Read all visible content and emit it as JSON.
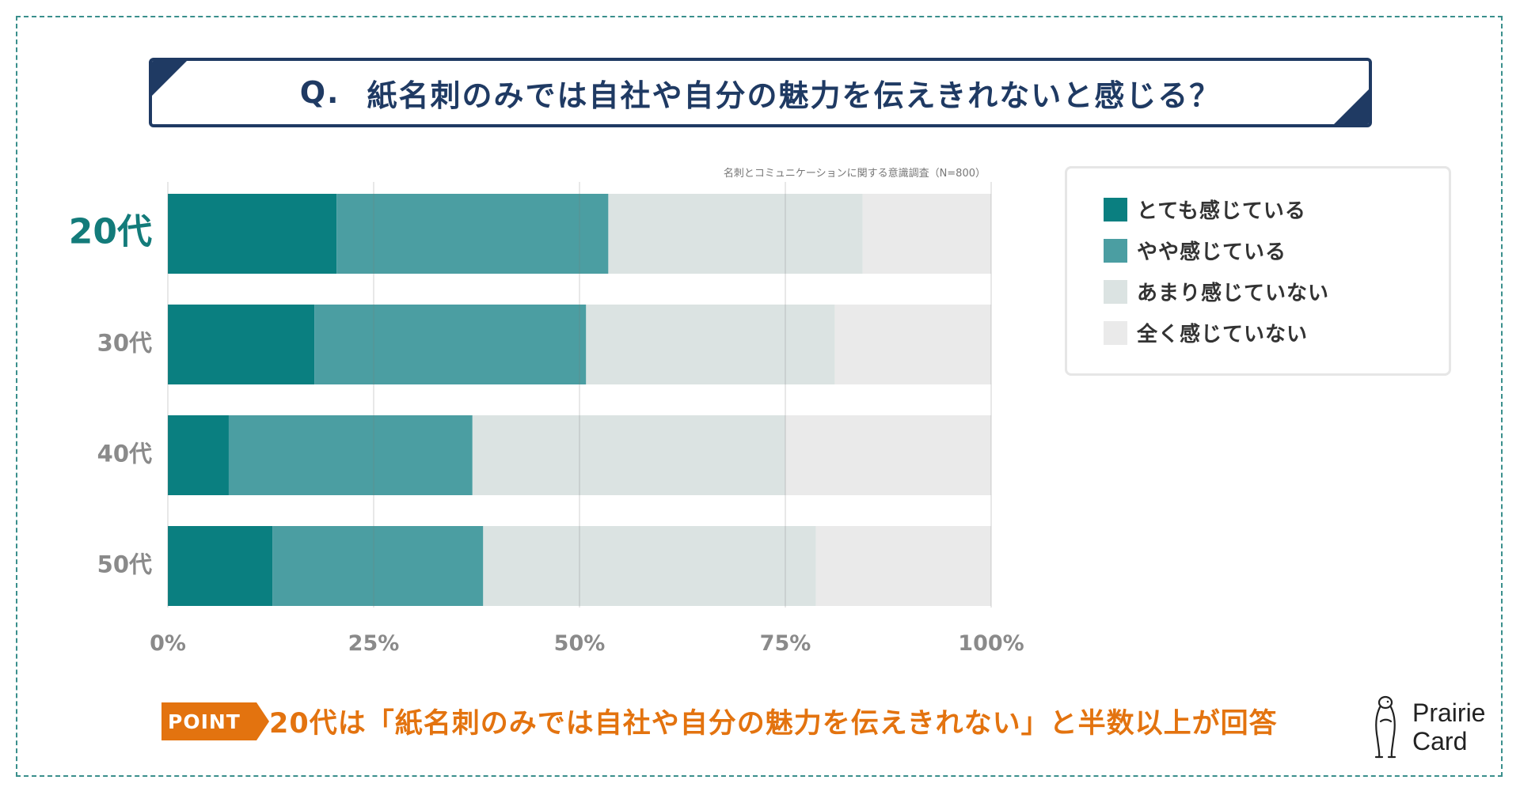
{
  "question": {
    "prefix": "Q.",
    "text": "紙名刺のみでは自社や自分の魅力を伝えきれないと感じる？"
  },
  "source_note": "名刺とコミュニケーションに関する意識調査（N=800）",
  "colors": {
    "frame": "#3a8f8c",
    "navy": "#1f3a63",
    "highlight_label": "#137b7a",
    "muted_label": "#8a8a8a",
    "orange": "#e3730f"
  },
  "chart_data": {
    "type": "bar",
    "orientation": "horizontal",
    "stacked": true,
    "categories": [
      "20代",
      "30代",
      "40代",
      "50代"
    ],
    "highlight_category": "20代",
    "series": [
      {
        "name": "とても感じている",
        "color": "#0a7f80",
        "values": [
          20.5,
          17.8,
          7.4,
          12.7
        ]
      },
      {
        "name": "やや感じている",
        "color": "#4b9ea2",
        "values": [
          33.0,
          33.0,
          29.6,
          25.6
        ]
      },
      {
        "name": "あまり感じていない",
        "color": "#dbe3e2",
        "values": [
          30.9,
          30.2,
          38.0,
          40.4
        ]
      },
      {
        "name": "全く感じていない",
        "color": "#eaeaea",
        "values": [
          15.6,
          19.0,
          25.0,
          21.3
        ]
      }
    ],
    "xlim": [
      0,
      100
    ],
    "xticks": [
      "0%",
      "25%",
      "50%",
      "75%",
      "100%"
    ],
    "grid": true,
    "legend": "right"
  },
  "point": {
    "badge": "POINT",
    "text": "20代は「紙名刺のみでは自社や自分の魅力を伝えきれない」と半数以上が回答"
  },
  "brand": {
    "line1": "Prairie",
    "line2": "Card",
    "icon": "prairie-dog-icon"
  }
}
